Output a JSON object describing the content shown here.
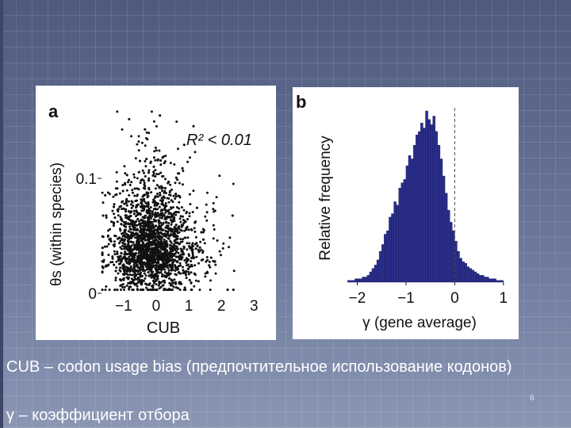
{
  "slide": {
    "caption_1": "CUB – codon usage bias (предпочтительное использование кодонов)",
    "caption_2": "γ – коэффициент отбора",
    "slide_number": "6"
  },
  "chart_data": [
    {
      "type": "scatter",
      "panel_label": "a",
      "annotation": "R² < 0.01",
      "xlabel": "CUB",
      "ylabel": "θs (within species)",
      "x_ticks": [
        "−1",
        "0",
        "1",
        "2",
        "3"
      ],
      "x_tick_values": [
        -1,
        0,
        1,
        2,
        3
      ],
      "y_ticks": [
        "0",
        "0.1"
      ],
      "y_tick_values": [
        0,
        0.1
      ],
      "xlim": [
        -1.7,
        3.6
      ],
      "ylim": [
        0,
        0.16
      ],
      "grid": false,
      "point_color": "#111111",
      "cluster_center": [
        -0.3,
        0.035
      ],
      "n_points_approx": 2500
    },
    {
      "type": "bar",
      "panel_label": "b",
      "xlabel": "γ (gene average)",
      "ylabel": "Relative frequency",
      "x_ticks": [
        "−2",
        "−1",
        "0",
        "1"
      ],
      "x_tick_values": [
        -2,
        -1,
        0,
        1
      ],
      "xlim": [
        -2.35,
        1.15
      ],
      "reference_line_x": 0,
      "bar_color": "#2a2e8a",
      "bin_start": -2.2,
      "bin_width": 0.05,
      "values": [
        0.01,
        0.01,
        0.01,
        0.02,
        0.02,
        0.02,
        0.03,
        0.03,
        0.04,
        0.06,
        0.08,
        0.1,
        0.13,
        0.18,
        0.22,
        0.28,
        0.3,
        0.38,
        0.4,
        0.47,
        0.45,
        0.55,
        0.58,
        0.6,
        0.68,
        0.74,
        0.72,
        0.8,
        0.86,
        0.88,
        0.93,
        0.9,
        1.0,
        0.95,
        0.92,
        0.97,
        0.88,
        0.8,
        0.72,
        0.62,
        0.52,
        0.42,
        0.35,
        0.3,
        0.24,
        0.18,
        0.14,
        0.12,
        0.11,
        0.09,
        0.08,
        0.07,
        0.06,
        0.05,
        0.04,
        0.04,
        0.03,
        0.03,
        0.02,
        0.02,
        0.02,
        0.01,
        0.01,
        0.01
      ]
    }
  ]
}
